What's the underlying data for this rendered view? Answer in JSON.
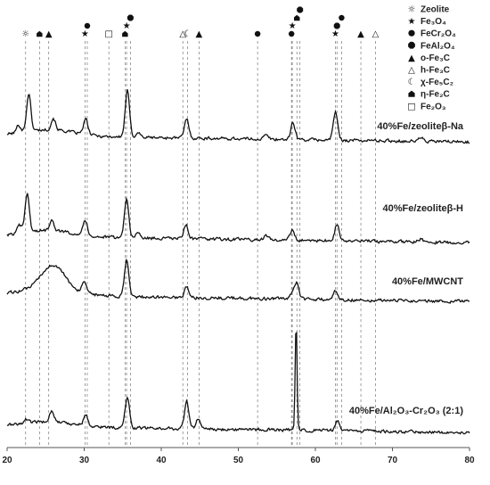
{
  "chart_data": {
    "type": "line",
    "title": "",
    "xlabel": "",
    "ylabel": "",
    "xlim": [
      20,
      80
    ],
    "x_ticks": [
      20,
      30,
      40,
      50,
      60,
      70,
      80
    ],
    "grid": false,
    "legend_position": "top-right",
    "series": [
      {
        "name": "40%Fe/zeoliteβ-Na",
        "peaks": [
          [
            21.5,
            12
          ],
          [
            22.8,
            58
          ],
          [
            26.0,
            18
          ],
          [
            30.2,
            24
          ],
          [
            35.6,
            72
          ],
          [
            37.0,
            8
          ],
          [
            43.3,
            30
          ],
          [
            53.6,
            6
          ],
          [
            57.1,
            26
          ],
          [
            62.6,
            44
          ],
          [
            73.7,
            6
          ]
        ]
      },
      {
        "name": "40%Fe/zeoliteβ-H",
        "peaks": [
          [
            21.6,
            12
          ],
          [
            22.6,
            60
          ],
          [
            25.8,
            18
          ],
          [
            30.1,
            24
          ],
          [
            35.5,
            62
          ],
          [
            37.0,
            8
          ],
          [
            43.2,
            22
          ],
          [
            53.6,
            6
          ],
          [
            57.0,
            16
          ],
          [
            62.8,
            26
          ],
          [
            73.7,
            5
          ]
        ]
      },
      {
        "name": "40%Fe/MWCNT",
        "peaks": [
          [
            26.0,
            34
          ],
          [
            30.0,
            14
          ],
          [
            35.5,
            56
          ],
          [
            43.3,
            16
          ],
          [
            57.0,
            8
          ],
          [
            57.6,
            26
          ],
          [
            62.6,
            14
          ]
        ]
      },
      {
        "name": "40%Fe/Al₂O₃-Cr₂O₃ (2:1)",
        "peaks": [
          [
            22.5,
            6
          ],
          [
            25.8,
            18
          ],
          [
            30.2,
            16
          ],
          [
            35.6,
            48
          ],
          [
            43.3,
            42
          ],
          [
            44.8,
            16
          ],
          [
            57.5,
            170
          ],
          [
            62.9,
            16
          ]
        ]
      }
    ],
    "phase_markers": [
      {
        "phase": "zeolite",
        "positions": [
          22.4
        ]
      },
      {
        "phase": "fe2o3",
        "positions": [
          33.2
        ]
      },
      {
        "phase": "fe3o4",
        "positions": [
          30.1,
          35.5,
          57.0,
          62.6
        ]
      },
      {
        "phase": "fecr2o4",
        "positions": [
          30.4,
          52.5,
          56.9,
          63.4
        ]
      },
      {
        "phase": "feal2o4",
        "positions": [
          36.0,
          58.0,
          62.8
        ]
      },
      {
        "phase": "o-fe3c",
        "positions": [
          25.4,
          44.9,
          65.9
        ]
      },
      {
        "phase": "h-fe3c",
        "positions": [
          42.8,
          67.8
        ]
      },
      {
        "phase": "chi-fe5c2",
        "positions": [
          43.4
        ]
      },
      {
        "phase": "eta-fe2c",
        "positions": [
          24.2,
          35.3,
          57.6
        ]
      }
    ],
    "legend": [
      {
        "phase": "zeolite",
        "label": "Zeolite",
        "glyph": "☼",
        "shape": "text"
      },
      {
        "phase": "fe3o4",
        "label": "Fe₃O₄",
        "glyph": "★",
        "shape": "text"
      },
      {
        "phase": "fecr2o4",
        "label": "FeCr₂O₄",
        "glyph": "",
        "shape": "circle"
      },
      {
        "phase": "feal2o4",
        "label": "FeAl₂O₄",
        "glyph": "",
        "shape": "octagon"
      },
      {
        "phase": "o-fe3c",
        "label": "o-Fe₃C",
        "glyph": "▲",
        "shape": "text"
      },
      {
        "phase": "h-fe3c",
        "label": "h-Fe₃C",
        "glyph": "△",
        "shape": "text"
      },
      {
        "phase": "chi-fe5c2",
        "label": "χ-Fe₅C₂",
        "glyph": "☾",
        "shape": "text"
      },
      {
        "phase": "eta-fe2c",
        "label": "η-Fe₂C",
        "glyph": "",
        "shape": "house"
      },
      {
        "phase": "fe2o3",
        "label": "Fe₂O₃",
        "glyph": "□",
        "shape": "text"
      }
    ]
  }
}
